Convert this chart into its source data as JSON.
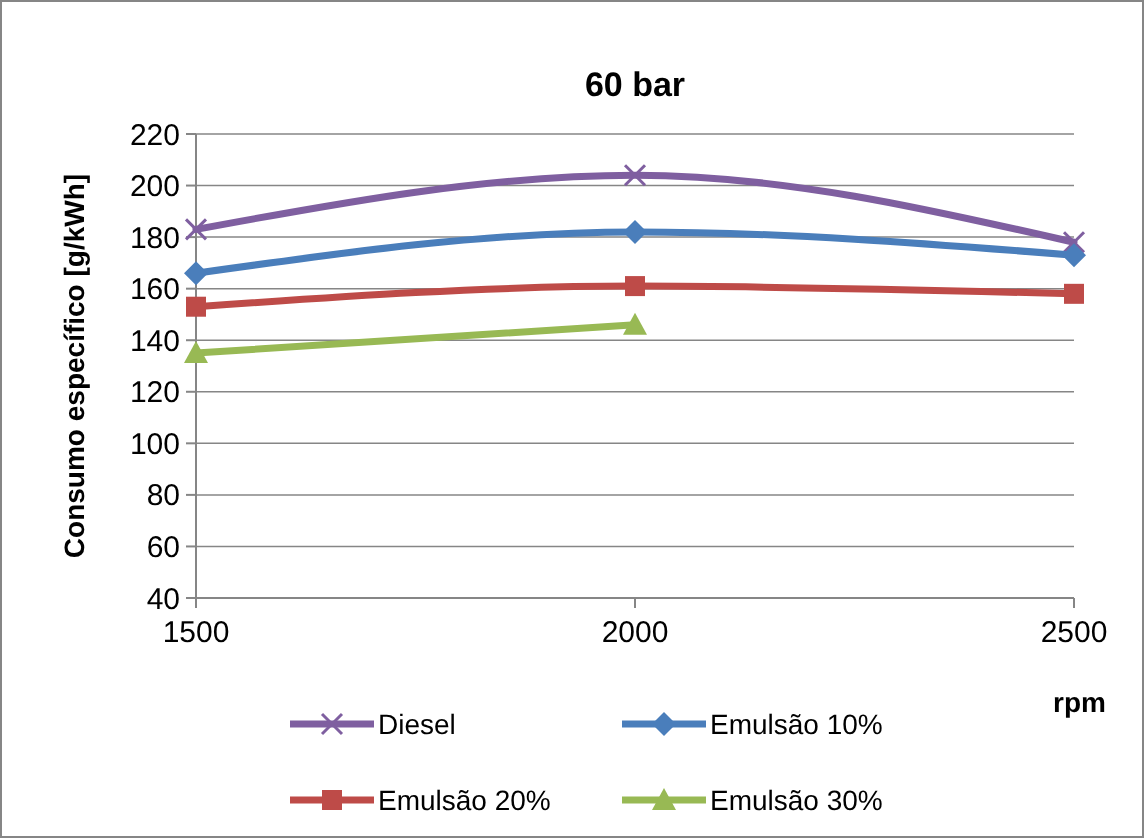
{
  "chart_data": {
    "type": "line",
    "title": "60 bar",
    "xlabel": "rpm",
    "ylabel": "Consumo específico [g/kWh]",
    "x": [
      1500,
      2000,
      2500
    ],
    "xlim": [
      1500,
      2500
    ],
    "xticks": [
      1500,
      2000,
      2500
    ],
    "ylim": [
      40,
      220
    ],
    "yticks": [
      40,
      60,
      80,
      100,
      120,
      140,
      160,
      180,
      200,
      220
    ],
    "grid": "y",
    "legend": "bottom",
    "series": [
      {
        "name": "Diesel",
        "color": "#7f5fa0",
        "marker": "cross",
        "values": [
          183,
          204,
          178
        ]
      },
      {
        "name": "Emulsão 10%",
        "color": "#4a7ebb",
        "marker": "diamond",
        "values": [
          166,
          182,
          173
        ]
      },
      {
        "name": "Emulsão 20%",
        "color": "#be4b48",
        "marker": "square",
        "values": [
          153,
          161,
          158
        ]
      },
      {
        "name": "Emulsão 30%",
        "color": "#98b954",
        "marker": "triangle",
        "values": [
          135,
          146,
          null
        ]
      }
    ]
  }
}
